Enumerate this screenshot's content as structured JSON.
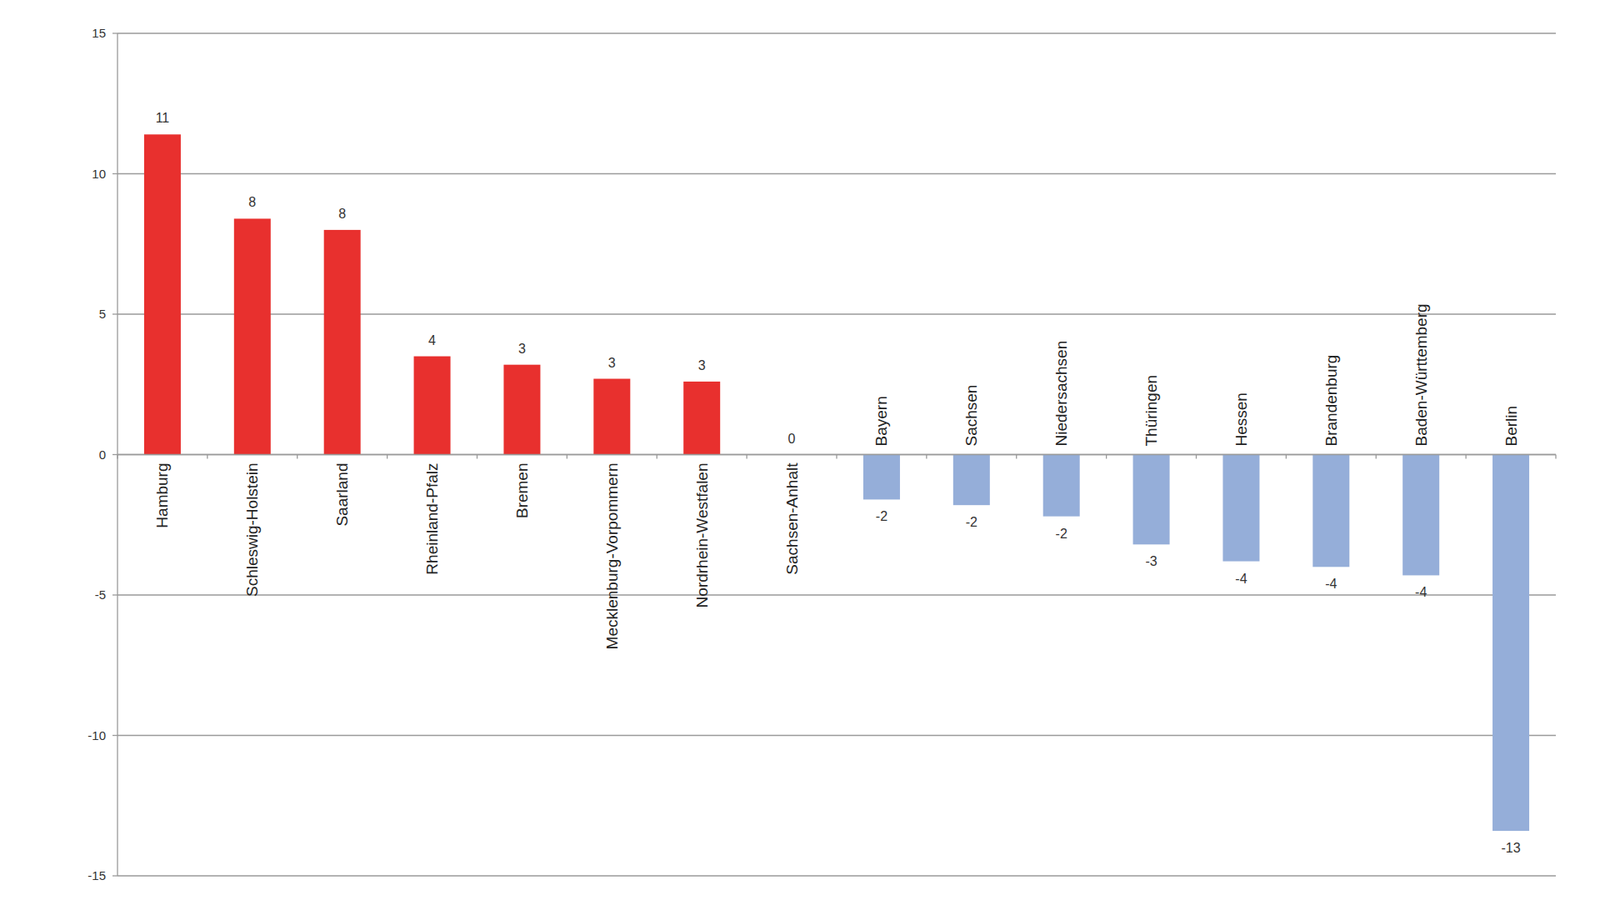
{
  "chart_data": {
    "type": "bar",
    "categories": [
      "Hamburg",
      "Schleswig-Holstein",
      "Saarland",
      "Rheinland-Pfalz",
      "Bremen",
      "Mecklenburg-Vorpommern",
      "Nordrhein-Westfalen",
      "Sachsen-Anhalt",
      "Bayern",
      "Sachsen",
      "Niedersachsen",
      "Thüringen",
      "Hessen",
      "Brandenburg",
      "Baden-Württemberg",
      "Berlin"
    ],
    "values": [
      11.4,
      8.4,
      8.0,
      3.5,
      3.2,
      2.7,
      2.6,
      0,
      -1.6,
      -1.8,
      -2.2,
      -3.2,
      -3.8,
      -4.0,
      -4.3,
      -13.4
    ],
    "value_labels": [
      "11",
      "8",
      "8",
      "4",
      "3",
      "3",
      "3",
      "0",
      "-2",
      "-2",
      "-2",
      "-3",
      "-4",
      "-4",
      "-4",
      "-13"
    ],
    "colors": [
      "#e8302e",
      "#e8302e",
      "#e8302e",
      "#e8302e",
      "#e8302e",
      "#e8302e",
      "#e8302e",
      "#e8302e",
      "#95aed9",
      "#95aed9",
      "#95aed9",
      "#95aed9",
      "#95aed9",
      "#95aed9",
      "#95aed9",
      "#95aed9"
    ],
    "ylim": [
      -15,
      15
    ],
    "yticks": [
      -15,
      -10,
      -5,
      0,
      5,
      10,
      15
    ],
    "grid": true,
    "data_labels": true
  }
}
